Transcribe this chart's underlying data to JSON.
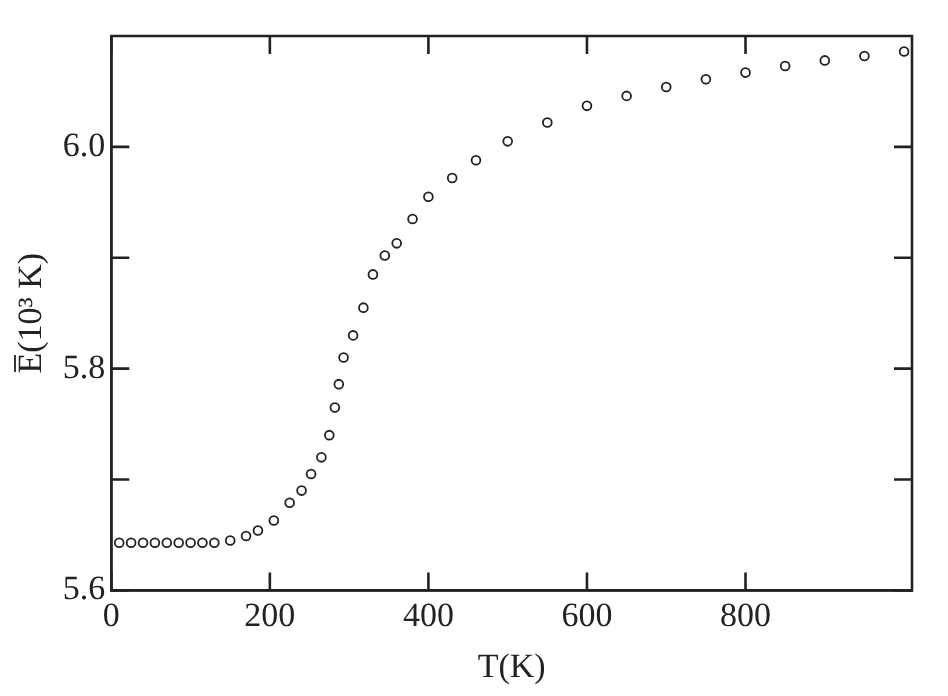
{
  "chart_data": {
    "type": "scatter",
    "xlabel": "T(K)",
    "ylabel": "E̅(10³ K)",
    "marker": "circle",
    "grid": false,
    "xlim": [
      0,
      1010
    ],
    "ylim": [
      5.6,
      6.1
    ],
    "xticks": [
      0,
      200,
      400,
      600,
      800
    ],
    "yticks": [
      5.6,
      {
        "value": 5.7,
        "label": null
      },
      5.8,
      {
        "value": 5.9,
        "label": null
      },
      {
        "value": 6,
        "label": "6.0"
      }
    ],
    "series": [
      {
        "color": "#222222",
        "x": [
          10,
          25,
          40,
          55,
          70,
          85,
          100,
          115,
          130,
          150,
          170,
          185,
          205,
          225,
          240,
          252,
          265,
          275,
          282,
          287,
          293,
          305,
          318,
          330,
          345,
          360,
          380,
          400,
          430,
          460,
          500,
          550,
          600,
          650,
          700,
          750,
          800,
          850,
          900,
          950,
          1000
        ],
        "values": [
          5.643,
          5.643,
          5.643,
          5.643,
          5.643,
          5.643,
          5.643,
          5.643,
          5.643,
          5.645,
          5.649,
          5.654,
          5.663,
          5.679,
          5.69,
          5.705,
          5.72,
          5.74,
          5.765,
          5.786,
          5.81,
          5.83,
          5.855,
          5.885,
          5.902,
          5.913,
          5.935,
          5.955,
          5.972,
          5.988,
          6.005,
          6.022,
          6.037,
          6.046,
          6.054,
          6.061,
          6.067,
          6.073,
          6.078,
          6.082,
          6.086
        ]
      }
    ]
  }
}
